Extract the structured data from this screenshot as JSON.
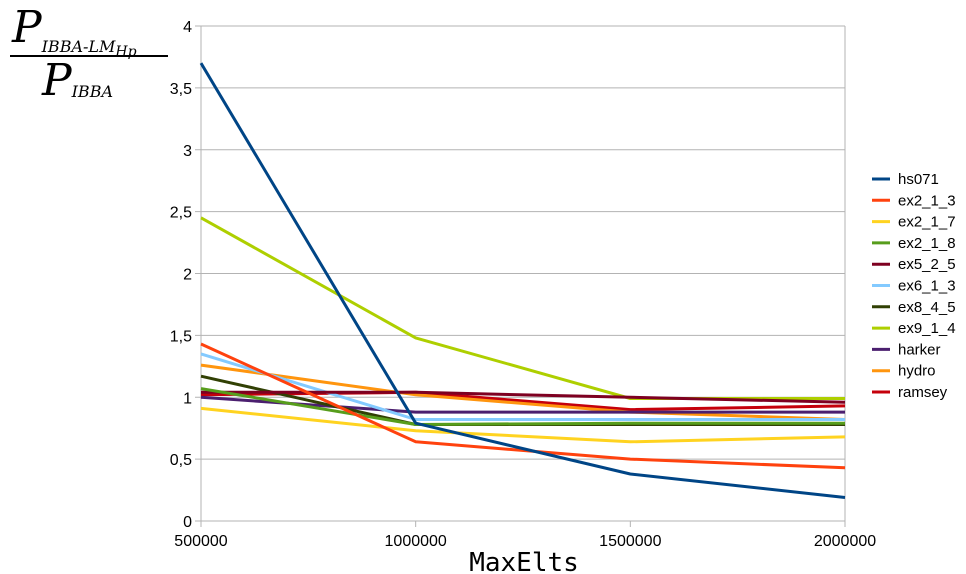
{
  "chart_data": {
    "type": "line",
    "title": "",
    "xlabel": "MaxElts",
    "ylabel": {
      "numerator_main": "P",
      "numerator_sub": "IBBA-LM",
      "numerator_subsub": "Hp",
      "denominator_main": "P",
      "denominator_sub": "IBBA"
    },
    "x": [
      500000,
      1000000,
      1500000,
      2000000
    ],
    "x_tick_labels": [
      "500000",
      "1000000",
      "1500000",
      "2000000"
    ],
    "ylim": [
      0,
      4
    ],
    "y_ticks": [
      0,
      0.5,
      1,
      1.5,
      2,
      2.5,
      3,
      3.5,
      4
    ],
    "y_tick_labels": [
      "0",
      "0,5",
      "1",
      "1,5",
      "2",
      "2,5",
      "3",
      "3,5",
      "4"
    ],
    "grid": "horizontal",
    "legend_position": "right",
    "series": [
      {
        "name": "hs071",
        "color": "#004586",
        "values": [
          3.7,
          0.79,
          0.38,
          0.19
        ]
      },
      {
        "name": "ex2_1_3",
        "color": "#ff420e",
        "values": [
          1.43,
          0.64,
          0.5,
          0.43
        ]
      },
      {
        "name": "ex2_1_7",
        "color": "#ffd320",
        "values": [
          0.91,
          0.73,
          0.64,
          0.68
        ]
      },
      {
        "name": "ex2_1_8",
        "color": "#579d1c",
        "values": [
          1.07,
          0.78,
          0.79,
          0.79
        ]
      },
      {
        "name": "ex5_2_5",
        "color": "#7e0021",
        "values": [
          1.04,
          1.04,
          1.0,
          0.96
        ]
      },
      {
        "name": "ex6_1_3",
        "color": "#83caff",
        "values": [
          1.35,
          0.82,
          0.82,
          0.82
        ]
      },
      {
        "name": "ex8_4_5",
        "color": "#314004",
        "values": [
          1.17,
          0.78,
          0.78,
          0.78
        ]
      },
      {
        "name": "ex9_1_4",
        "color": "#aecf00",
        "values": [
          2.45,
          1.48,
          0.99,
          0.99
        ]
      },
      {
        "name": "harker",
        "color": "#4b1f6f",
        "values": [
          1.0,
          0.88,
          0.88,
          0.88
        ]
      },
      {
        "name": "hydro",
        "color": "#ff950e",
        "values": [
          1.26,
          1.02,
          0.88,
          0.82
        ]
      },
      {
        "name": "ramsey",
        "color": "#c5000b",
        "values": [
          1.02,
          1.04,
          0.9,
          0.93
        ]
      }
    ]
  }
}
